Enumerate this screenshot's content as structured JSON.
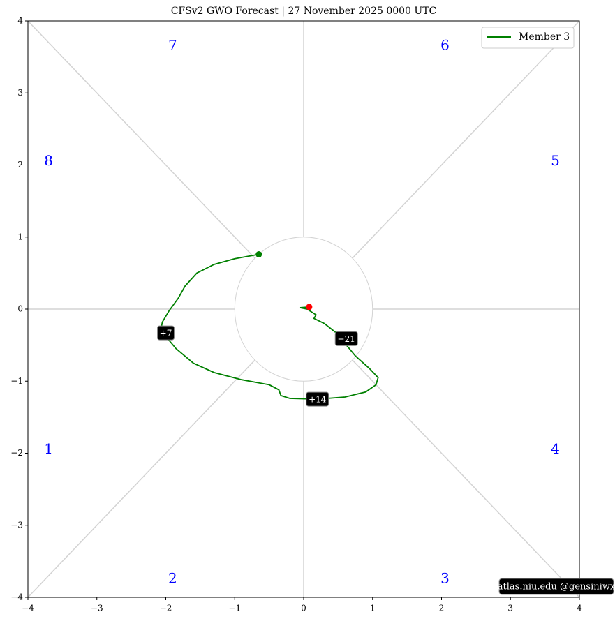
{
  "chart_data": {
    "type": "line",
    "title": "CFSv2 GWO Forecast   |   27  November  2025 0000 UTC",
    "xlim": [
      -4,
      4
    ],
    "ylim": [
      -4,
      4
    ],
    "xticks": [
      {
        "value": -4,
        "label": "−4"
      },
      {
        "value": -3,
        "label": "−3"
      },
      {
        "value": -2,
        "label": "−2"
      },
      {
        "value": -1,
        "label": "−1"
      },
      0,
      1,
      2,
      3,
      4
    ],
    "yticks": [
      {
        "value": -4,
        "label": "−4"
      },
      {
        "value": -3,
        "label": "−3"
      },
      {
        "value": -2,
        "label": "−2"
      },
      {
        "value": -1,
        "label": "−1"
      },
      0,
      1,
      2,
      3,
      4
    ],
    "phase_labels": [
      "1",
      "2",
      "3",
      "4",
      "5",
      "6",
      "7",
      "8"
    ],
    "legend": "upper right",
    "series": [
      {
        "name": "Member 3",
        "color": "#008000",
        "x": [
          -0.65,
          -1.0,
          -1.3,
          -1.55,
          -1.72,
          -1.82,
          -1.95,
          -2.05,
          -2.07,
          -2.0,
          -1.85,
          -1.6,
          -1.3,
          -0.9,
          -0.5,
          -0.36,
          -0.33,
          -0.2,
          0.2,
          0.6,
          0.9,
          1.05,
          1.08,
          0.95,
          0.75,
          0.62,
          0.5,
          0.3,
          0.15,
          0.18,
          0.05,
          -0.05,
          0.08
        ],
        "values": [
          0.76,
          0.7,
          0.62,
          0.5,
          0.32,
          0.15,
          -0.02,
          -0.18,
          -0.28,
          -0.38,
          -0.55,
          -0.75,
          -0.88,
          -0.98,
          -1.05,
          -1.12,
          -1.2,
          -1.24,
          -1.25,
          -1.22,
          -1.15,
          -1.05,
          -0.95,
          -0.82,
          -0.65,
          -0.5,
          -0.35,
          -0.2,
          -0.13,
          -0.08,
          0.0,
          0.02,
          0.03
        ]
      }
    ],
    "start_color": "#008000",
    "end_color": "#ff0000",
    "annotations": [
      {
        "text": "+7",
        "x": -2.0,
        "y": -0.33
      },
      {
        "text": "+14",
        "x": 0.2,
        "y": -1.25
      },
      {
        "text": "+21",
        "x": 0.62,
        "y": -0.41
      }
    ],
    "watermark": "atlas.niu.edu  @gensiniwx"
  }
}
